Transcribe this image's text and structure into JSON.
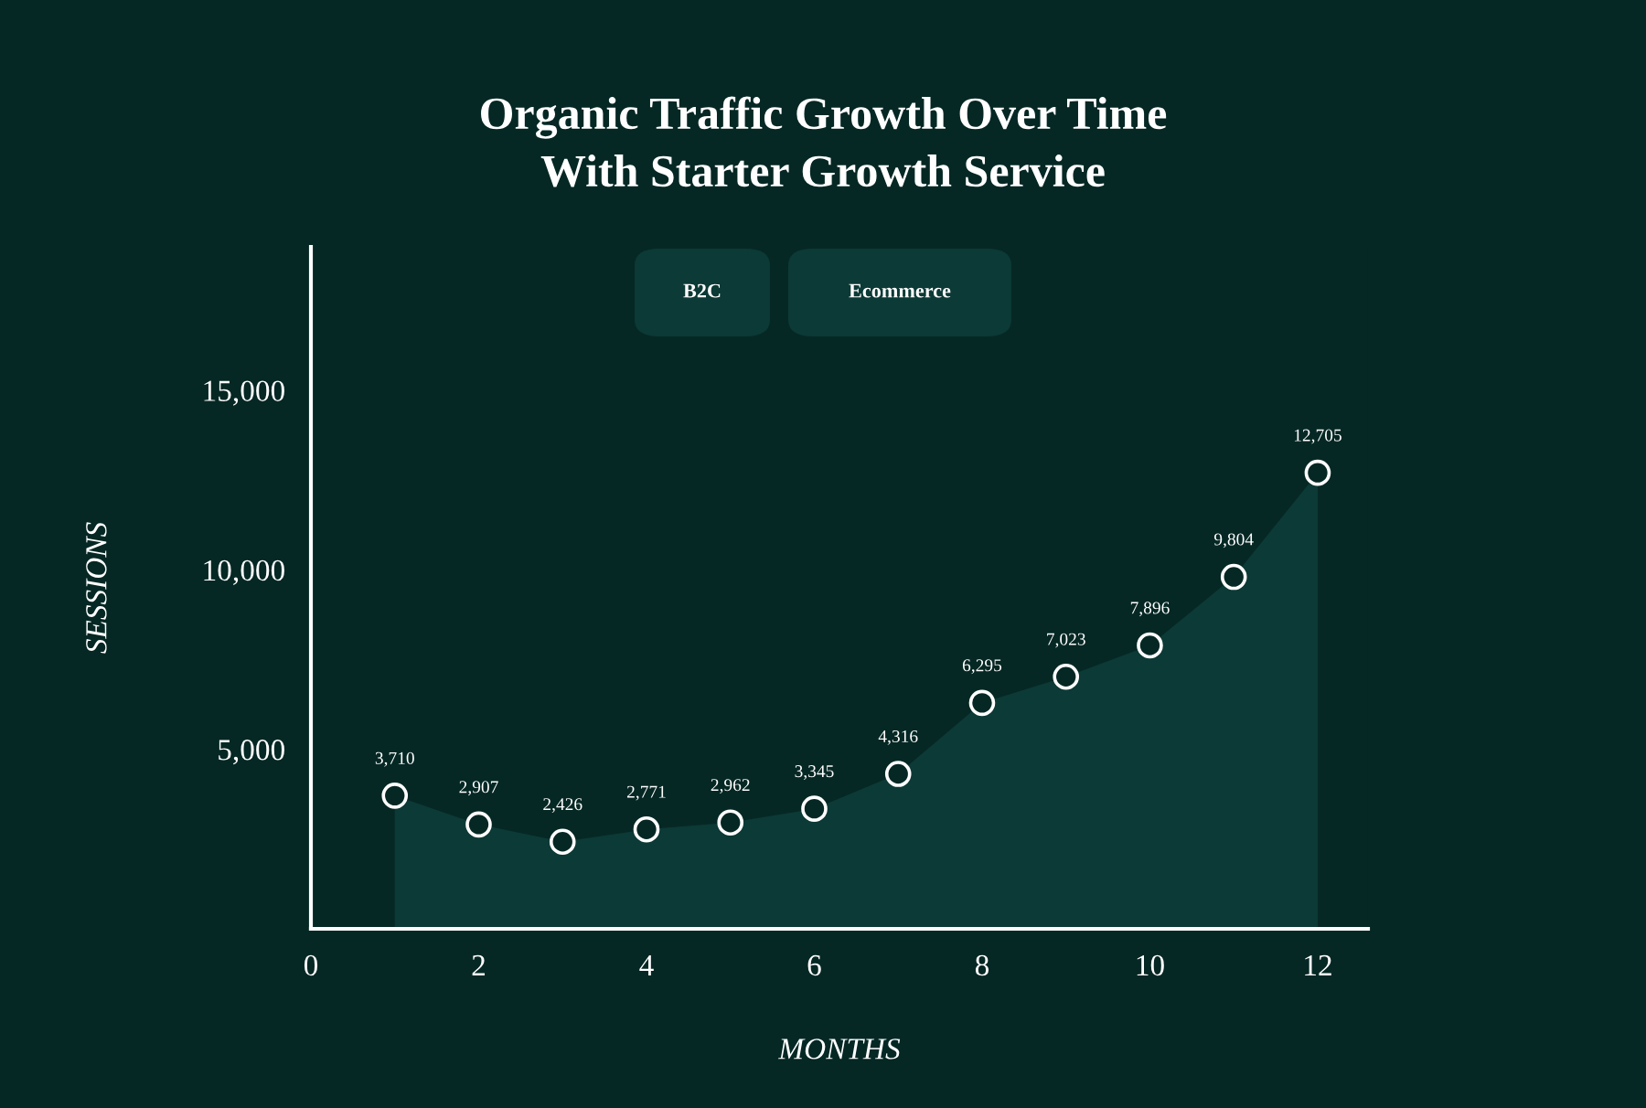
{
  "chart_data": {
    "type": "area",
    "title": "Organic Traffic Growth Over Time\nWith Starter Growth Service",
    "xlabel": "MONTHS",
    "ylabel": "SESSIONS",
    "annotations": [
      "B2C",
      "Ecommerce"
    ],
    "x": [
      1,
      2,
      3,
      4,
      5,
      6,
      7,
      8,
      9,
      10,
      11,
      12
    ],
    "series": [
      {
        "color": "#0c3a36",
        "values": [
          3710,
          2907,
          2426,
          2771,
          2962,
          3345,
          4316,
          6295,
          7023,
          7896,
          9804,
          12705
        ],
        "value_labels": [
          "3,710",
          "2,907",
          "2,426",
          "2,771",
          "2,962",
          "3,345",
          "4,316",
          "6,295",
          "7,023",
          "7,896",
          "9,804",
          "12,705"
        ]
      }
    ],
    "marker": "circle",
    "grid": false,
    "legend": false,
    "xlim": [
      0,
      12.6
    ],
    "xticks": [
      0,
      2,
      4,
      6,
      8,
      10,
      12
    ],
    "ylim": [
      0,
      19000
    ],
    "yticks": [
      {
        "value": 5000,
        "label": "5,000"
      },
      {
        "value": 10000,
        "label": "10,000"
      },
      {
        "value": 15000,
        "label": "15,000"
      }
    ]
  }
}
